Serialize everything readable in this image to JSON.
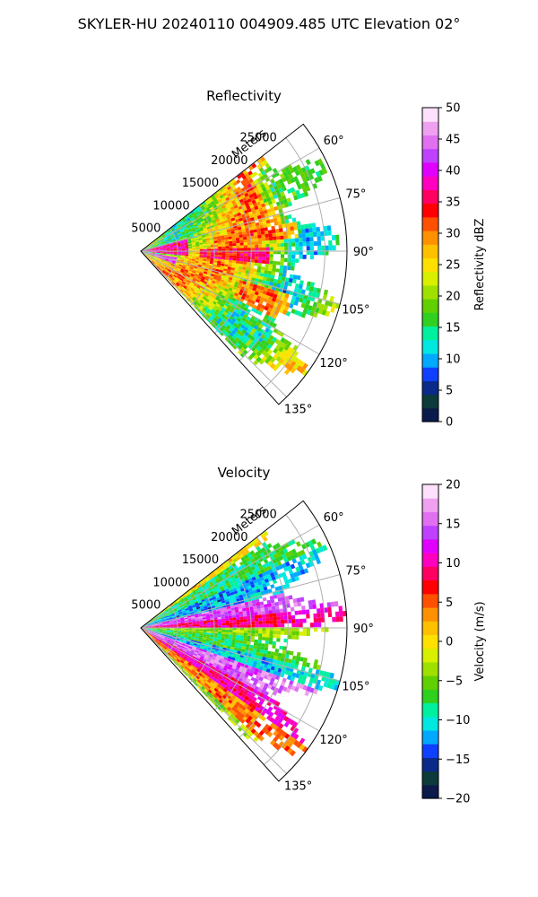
{
  "suptitle": "SKYLER-HU  20240110  004909.485 UTC Elevation 02°",
  "chart_data": [
    {
      "type": "heatmap",
      "title": "Reflectivity",
      "radial_label": "Meters",
      "r_ticks": [
        "5000",
        "10000",
        "15000",
        "20000",
        "25000"
      ],
      "r_tick_values": [
        5000,
        10000,
        15000,
        20000,
        25000
      ],
      "r_max": 28000,
      "theta_ticks": [
        "60°",
        "75°",
        "90°",
        "105°",
        "120°",
        "135°"
      ],
      "theta_tick_values": [
        60,
        75,
        90,
        105,
        120,
        135
      ],
      "theta_range_deg": [
        52,
        138
      ],
      "grid": true,
      "colorbar": {
        "label": "Reflectivity dBZ",
        "ticks": [
          "0",
          "5",
          "10",
          "15",
          "20",
          "25",
          "30",
          "35",
          "40",
          "45",
          "50"
        ],
        "range": [
          0,
          50
        ],
        "colors": [
          "#0a1a4a",
          "#0d3a3a",
          "#0a2a8a",
          "#1040ff",
          "#00a8ff",
          "#00e8e0",
          "#00f0a0",
          "#30d020",
          "#60d000",
          "#a0e000",
          "#d8f000",
          "#ffe000",
          "#ffc000",
          "#ff9000",
          "#ff5000",
          "#ff0000",
          "#ff0060",
          "#ff00c0",
          "#e000ff",
          "#c040ff",
          "#e070f0",
          "#f0a0f0",
          "#fce0fc"
        ]
      },
      "features": [
        {
          "desc": "core",
          "r": [
            0,
            6000
          ],
          "theta": [
            75,
            96
          ],
          "value": 37
        },
        {
          "desc": "core",
          "r": [
            0,
            4500
          ],
          "theta": [
            100,
            110
          ],
          "value": 42
        },
        {
          "desc": "band",
          "r": [
            8000,
            17000
          ],
          "theta": [
            88,
            95
          ],
          "value": 35
        },
        {
          "desc": "band",
          "r": [
            10000,
            21000
          ],
          "theta": [
            80,
            85
          ],
          "value": 31
        },
        {
          "desc": "band",
          "r": [
            14000,
            21000
          ],
          "theta": [
            106,
            116
          ],
          "value": 30
        },
        {
          "desc": "edge",
          "r": [
            18000,
            27000
          ],
          "theta": [
            56,
            72
          ],
          "value": 20
        }
      ]
    },
    {
      "type": "heatmap",
      "title": "Velocity",
      "radial_label": "Meters",
      "r_ticks": [
        "5000",
        "10000",
        "15000",
        "20000",
        "25000"
      ],
      "r_tick_values": [
        5000,
        10000,
        15000,
        20000,
        25000
      ],
      "r_max": 28000,
      "theta_ticks": [
        "60°",
        "75°",
        "90°",
        "105°",
        "120°",
        "135°"
      ],
      "theta_tick_values": [
        60,
        75,
        90,
        105,
        120,
        135
      ],
      "theta_range_deg": [
        52,
        138
      ],
      "grid": true,
      "colorbar": {
        "label": "Velocity (m/s)",
        "ticks": [
          "20",
          "15",
          "10",
          "5",
          "0",
          "−5",
          "−10",
          "−15",
          "−20"
        ],
        "range": [
          -20,
          20
        ],
        "colors": [
          "#0a1a4a",
          "#0d3a3a",
          "#0a2a8a",
          "#1040ff",
          "#00a8ff",
          "#00e8e0",
          "#00f0a0",
          "#30d020",
          "#60d000",
          "#a0e000",
          "#d8f000",
          "#ffe000",
          "#ffc000",
          "#ff9000",
          "#ff5000",
          "#ff0000",
          "#ff0060",
          "#ff00c0",
          "#e000ff",
          "#c040ff",
          "#e070f0",
          "#f0a0f0",
          "#fce0fc"
        ]
      },
      "bands": [
        {
          "theta": [
            55,
            66
          ],
          "value": -8
        },
        {
          "theta": [
            66,
            76
          ],
          "value": -12
        },
        {
          "theta": [
            76,
            84
          ],
          "value": 14
        },
        {
          "theta": [
            84,
            90
          ],
          "value": 9
        },
        {
          "theta": [
            90,
            95
          ],
          "value": -4
        },
        {
          "theta": [
            95,
            103
          ],
          "value": -7
        },
        {
          "theta": [
            103,
            110
          ],
          "value": -11
        },
        {
          "theta": [
            110,
            118
          ],
          "value": 15
        },
        {
          "theta": [
            118,
            126
          ],
          "value": 10
        },
        {
          "theta": [
            126,
            134
          ],
          "value": 4
        },
        {
          "theta": [
            134,
            138
          ],
          "value": -4
        }
      ]
    }
  ]
}
